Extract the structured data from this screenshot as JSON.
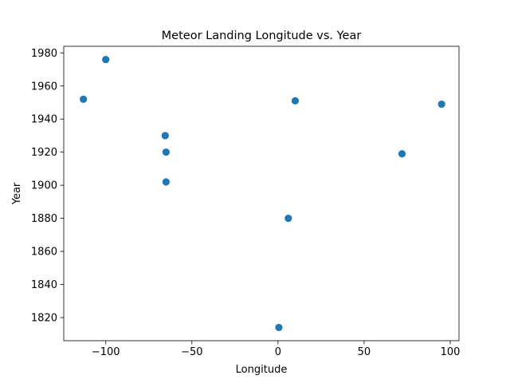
{
  "chart_data": {
    "type": "scatter",
    "title": "Meteor Landing Longitude vs. Year",
    "xlabel": "Longitude",
    "ylabel": "Year",
    "xlim": [
      -124.4,
      105.1
    ],
    "ylim": [
      1806,
      1984
    ],
    "xticks": [
      -100,
      -50,
      0,
      50,
      100
    ],
    "xtick_labels": [
      "−100",
      "−50",
      "0",
      "50",
      "100"
    ],
    "yticks": [
      1820,
      1840,
      1860,
      1880,
      1900,
      1920,
      1940,
      1960,
      1980
    ],
    "ytick_labels": [
      "1820",
      "1840",
      "1860",
      "1880",
      "1900",
      "1920",
      "1940",
      "1960",
      "1980"
    ],
    "grid": false,
    "marker_color": "#1f77b4",
    "points": [
      {
        "x": -100,
        "y": 1976
      },
      {
        "x": -113,
        "y": 1952
      },
      {
        "x": 10,
        "y": 1951
      },
      {
        "x": 95,
        "y": 1949
      },
      {
        "x": -65.5,
        "y": 1930
      },
      {
        "x": -65,
        "y": 1920
      },
      {
        "x": 72,
        "y": 1919
      },
      {
        "x": -65,
        "y": 1902
      },
      {
        "x": 6,
        "y": 1880
      },
      {
        "x": 0.5,
        "y": 1814
      }
    ]
  }
}
